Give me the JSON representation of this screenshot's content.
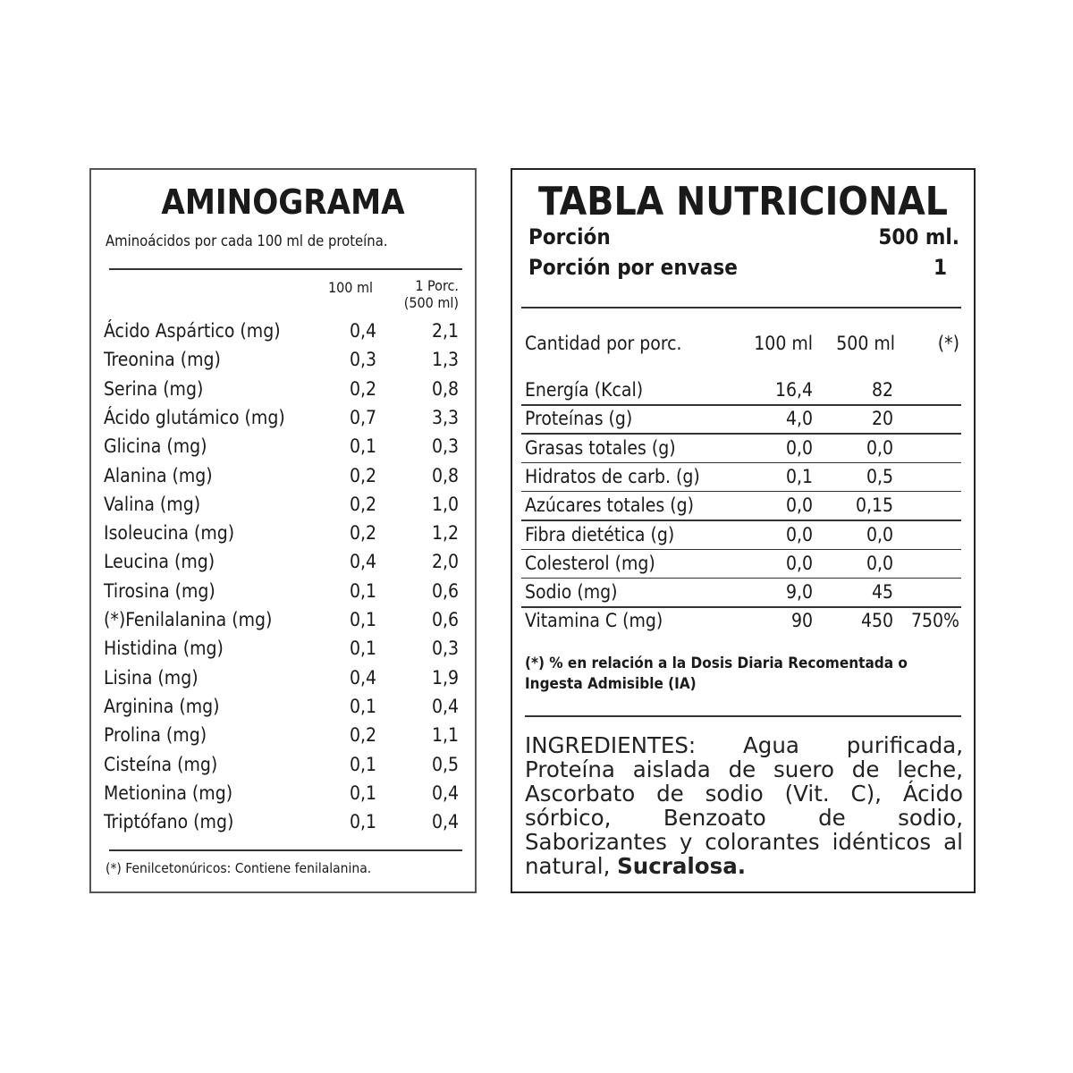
{
  "aminograma": {
    "title": "AMINOGRAMA",
    "subtitle": "Aminoácidos por cada 100 ml de proteína.",
    "col1": "100 ml",
    "col2_line1": "1 Porc.",
    "col2_line2": "(500 ml)",
    "rows": [
      [
        "Ácido Aspártico (mg)",
        "0,4",
        "2,1"
      ],
      [
        "Treonina (mg)",
        "0,3",
        "1,3"
      ],
      [
        "Serina (mg)",
        "0,2",
        "0,8"
      ],
      [
        "Ácido glutámico (mg)",
        "0,7",
        "3,3"
      ],
      [
        "Glicina (mg)",
        "0,1",
        "0,3"
      ],
      [
        "Alanina (mg)",
        "0,2",
        "0,8"
      ],
      [
        "Valina (mg)",
        "0,2",
        "1,0"
      ],
      [
        "Isoleucina (mg)",
        "0,2",
        "1,2"
      ],
      [
        "Leucina (mg)",
        "0,4",
        "2,0"
      ],
      [
        "Tirosina (mg)",
        "0,1",
        "0,6"
      ],
      [
        "(*)Fenilalanina (mg)",
        "0,1",
        "0,6"
      ],
      [
        "Histidina (mg)",
        "0,1",
        "0,3"
      ],
      [
        "Lisina (mg)",
        "0,4",
        "1,9"
      ],
      [
        "Arginina (mg)",
        "0,1",
        "0,4"
      ],
      [
        "Prolina (mg)",
        "0,2",
        "1,1"
      ],
      [
        "Cisteína (mg)",
        "0,1",
        "0,5"
      ],
      [
        "Metionina (mg)",
        "0,1",
        "0,4"
      ],
      [
        "Triptófano (mg)",
        "0,1",
        "0,4"
      ]
    ],
    "footnote": "(*) Fenilcetonúricos: Contiene fenilalanina."
  },
  "nutricional": {
    "title": "TABLA NUTRICIONAL",
    "porcion_label": "Porción",
    "porcion_value": "500 ml.",
    "envase_label": "Porción por envase",
    "envase_value": "1",
    "header": [
      "Cantidad por porc.",
      "100 ml",
      "500 ml",
      "(*)"
    ],
    "rows": [
      [
        "Energía (Kcal)",
        "16,4",
        "82",
        ""
      ],
      [
        "Proteínas (g)",
        "4,0",
        "20",
        ""
      ],
      [
        "Grasas totales (g)",
        "0,0",
        "0,0",
        ""
      ],
      [
        "Hidratos de carb. (g)",
        "0,1",
        "0,5",
        ""
      ],
      [
        "Azúcares totales (g)",
        "0,0",
        "0,15",
        ""
      ],
      [
        "Fibra dietética (g)",
        "0,0",
        "0,0",
        ""
      ],
      [
        "Colesterol (mg)",
        "0,0",
        "0,0",
        ""
      ],
      [
        "Sodio (mg)",
        "9,0",
        "45",
        ""
      ],
      [
        "Vitamina C (mg)",
        "90",
        "450",
        "750%"
      ]
    ],
    "footnote_line1": "(*) % en relación a la Dosis Diaria Recomentada o",
    "footnote_line2": "Ingesta Admisible (IA)",
    "ingredients_text": "INGREDIENTES: Agua purificada, Proteína aislada de suero de leche, Ascorbato de sodio (Vit. C), Ácido sórbico, Benzoato de sodio, Saborizantes y colorantes idénticos al natural, ",
    "ingredients_bold": "Sucralosa."
  }
}
